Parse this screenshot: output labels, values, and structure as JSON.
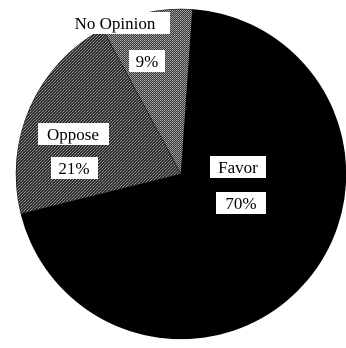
{
  "chart_data": {
    "type": "pie",
    "slices": [
      {
        "label": "Favor",
        "value": 70,
        "value_label": "70%",
        "color": "#000000",
        "pattern": "solid"
      },
      {
        "label": "Oppose",
        "value": 21,
        "value_label": "21%",
        "color": "#4a4a4a",
        "pattern": "dotted-gray"
      },
      {
        "label": "No Opinion",
        "value": 9,
        "value_label": "9%",
        "color": "#6e6e6e",
        "pattern": "fine-gray"
      }
    ],
    "title": "",
    "legend": "none"
  }
}
